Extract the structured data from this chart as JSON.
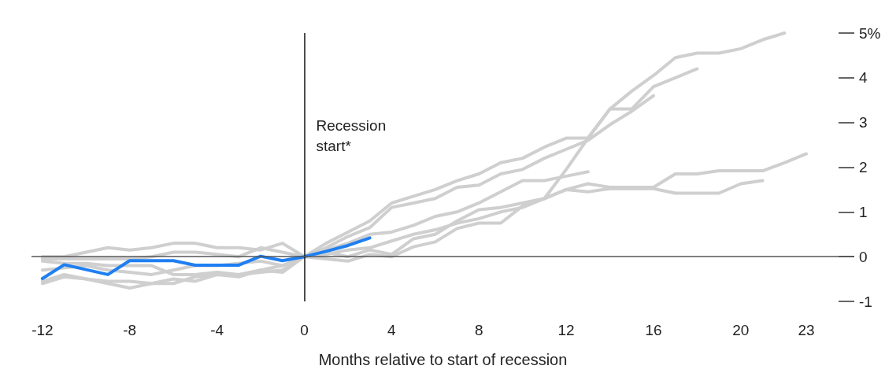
{
  "chart_data": {
    "type": "line",
    "xlabel": "Months relative to start of recession",
    "x": [
      -12,
      -11,
      -10,
      -9,
      -8,
      -7,
      -6,
      -5,
      -4,
      -3,
      -2,
      -1,
      0,
      1,
      2,
      3,
      4,
      5,
      6,
      7,
      8,
      9,
      10,
      11,
      12,
      13,
      14,
      15,
      16,
      17,
      18,
      19,
      20,
      21,
      22,
      23
    ],
    "series": [
      {
        "color": "#cfcfcf",
        "values": [
          0.0,
          0.0,
          0.1,
          0.2,
          0.15,
          0.2,
          0.3,
          0.3,
          0.2,
          0.2,
          0.15,
          0.3,
          0,
          0.3,
          0.55,
          0.8,
          1.2,
          1.35,
          1.5,
          1.7,
          1.85,
          2.1,
          2.2,
          2.45,
          2.65,
          2.65,
          3.3,
          3.7,
          4.05,
          4.45,
          4.55,
          4.55,
          4.65,
          4.85,
          5.0,
          null
        ]
      },
      {
        "color": "#cfcfcf",
        "values": [
          -0.05,
          -0.05,
          -0.05,
          -0.05,
          -0.05,
          0.0,
          0.1,
          0.1,
          0.05,
          0.0,
          0.2,
          0.1,
          0,
          0.2,
          0.45,
          0.65,
          1.1,
          1.2,
          1.3,
          1.55,
          1.6,
          1.85,
          1.95,
          2.2,
          2.4,
          2.6,
          2.95,
          3.25,
          3.6,
          null,
          null,
          null,
          null,
          null,
          null,
          null
        ]
      },
      {
        "color": "#cfcfcf",
        "values": [
          -0.55,
          -0.4,
          -0.5,
          -0.6,
          -0.7,
          -0.6,
          -0.6,
          -0.45,
          -0.4,
          -0.45,
          -0.3,
          -0.2,
          0,
          0.1,
          0.0,
          0.15,
          0.05,
          0.4,
          0.5,
          0.8,
          1.05,
          1.1,
          1.2,
          1.3,
          1.95,
          2.65,
          3.3,
          3.3,
          3.8,
          4.0,
          4.2,
          null,
          null,
          null,
          null,
          null
        ]
      },
      {
        "color": "#cfcfcf",
        "values": [
          -0.3,
          -0.25,
          -0.2,
          -0.3,
          -0.35,
          -0.4,
          -0.3,
          -0.2,
          -0.2,
          -0.15,
          -0.1,
          -0.2,
          0,
          0.15,
          0.3,
          0.5,
          0.55,
          0.7,
          0.9,
          1.0,
          1.2,
          1.45,
          1.7,
          1.7,
          1.8,
          1.9,
          null,
          null,
          null,
          null,
          null,
          null,
          null,
          null,
          null,
          null
        ]
      },
      {
        "color": "#cfcfcf",
        "values": [
          -0.1,
          -0.15,
          -0.15,
          -0.2,
          -0.2,
          -0.2,
          -0.4,
          -0.4,
          -0.35,
          -0.4,
          -0.3,
          -0.35,
          0,
          0.05,
          0.15,
          0.2,
          0.35,
          0.5,
          0.6,
          0.75,
          0.85,
          1.0,
          1.1,
          1.3,
          1.5,
          1.63,
          1.55,
          1.55,
          1.55,
          1.85,
          1.85,
          1.92,
          1.92,
          1.92,
          2.1,
          2.3
        ]
      },
      {
        "color": "#cfcfcf",
        "values": [
          -0.6,
          -0.45,
          -0.5,
          -0.55,
          -0.55,
          -0.6,
          -0.5,
          -0.55,
          -0.4,
          -0.4,
          -0.35,
          -0.3,
          0,
          -0.05,
          -0.1,
          0.05,
          0.0,
          0.22,
          0.33,
          0.63,
          0.75,
          0.75,
          1.13,
          1.3,
          1.5,
          1.45,
          1.52,
          1.52,
          1.52,
          1.42,
          1.42,
          1.42,
          1.63,
          1.7,
          null,
          null
        ]
      },
      {
        "color": "#1f7ff2",
        "values": [
          -0.49,
          -0.18,
          -0.29,
          -0.4,
          -0.09,
          -0.09,
          -0.09,
          -0.19,
          -0.19,
          -0.19,
          0.01,
          -0.09,
          0,
          0.12,
          0.25,
          0.42,
          null,
          null,
          null,
          null,
          null,
          null,
          null,
          null,
          null,
          null,
          null,
          null,
          null,
          null,
          null,
          null,
          null,
          null,
          null,
          null
        ]
      }
    ],
    "xlim": [
      -12.5,
      25.2
    ],
    "xticks": [
      -12,
      -8,
      -4,
      0,
      4,
      8,
      12,
      16,
      20,
      23
    ],
    "ylim": [
      -1,
      5
    ],
    "yticks": [
      -1,
      0,
      1,
      2,
      3,
      4,
      {
        "value": 5,
        "label": "5%"
      }
    ],
    "ref_lines": [
      {
        "axis": "x",
        "value": 0,
        "label": "Recession start*",
        "color": "#111111"
      },
      {
        "axis": "y",
        "value": 0,
        "color": "#555555"
      }
    ],
    "grid": false,
    "marker": "none",
    "line_style": "solid"
  }
}
